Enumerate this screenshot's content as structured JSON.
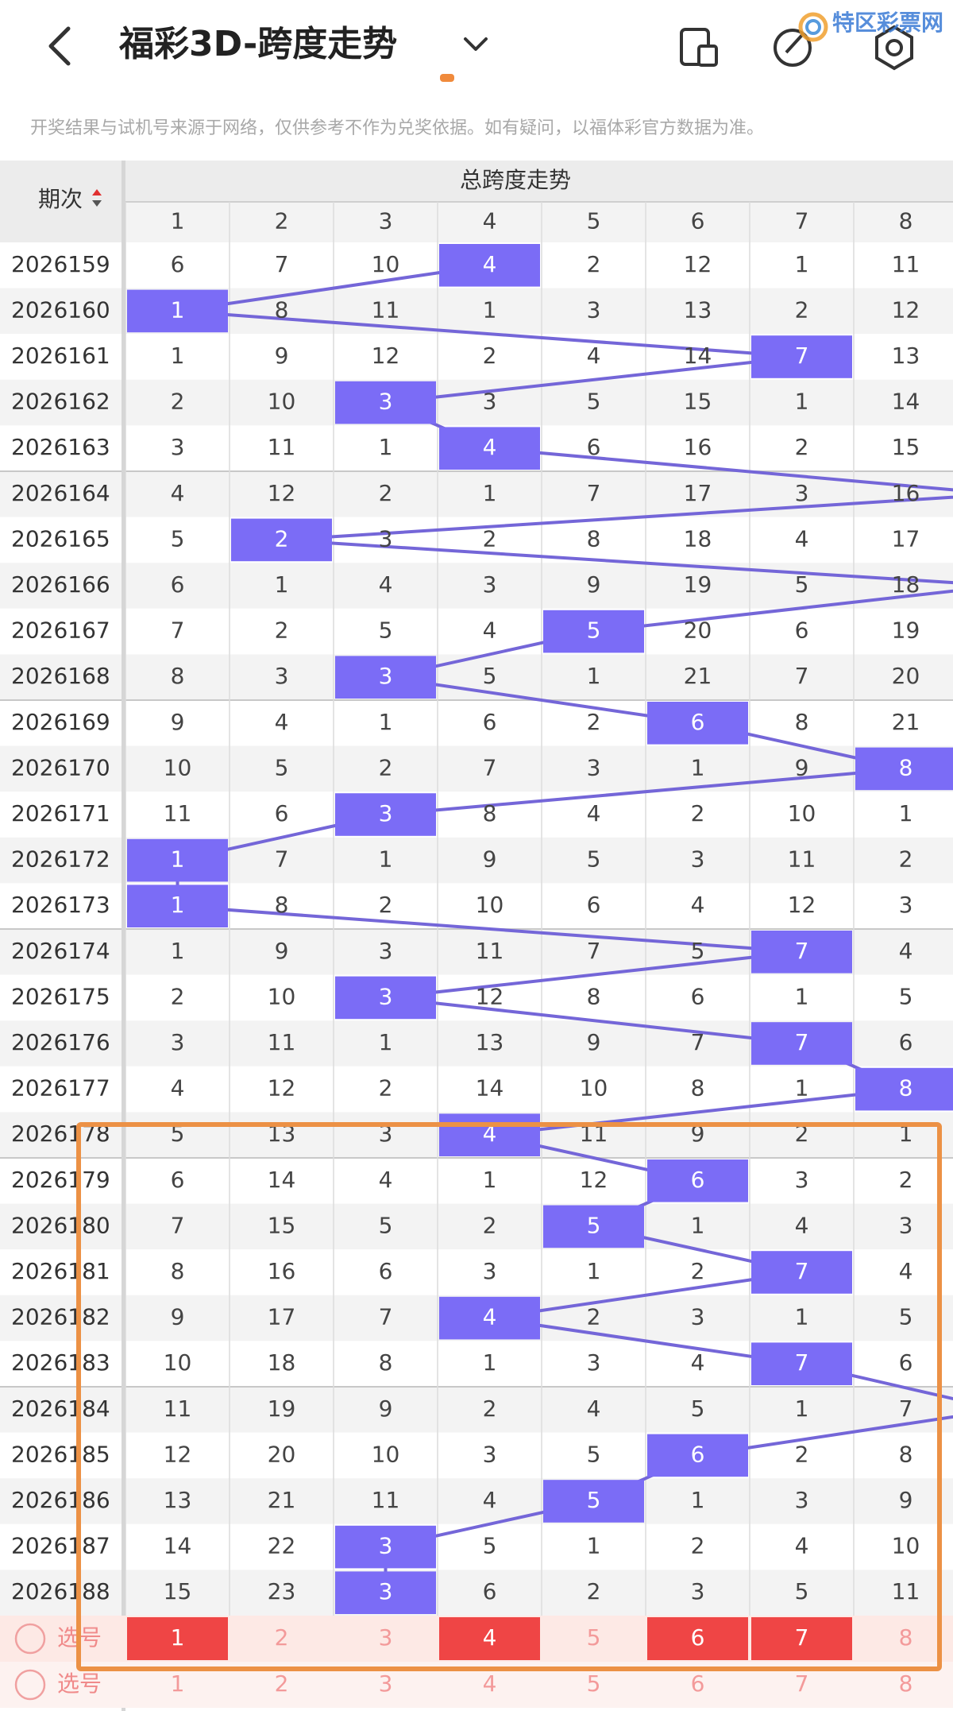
{
  "header": {
    "title": "福彩3D-跨度走势",
    "watermark": "特区彩票网"
  },
  "notice": "开奖结果与试机号来源于网络，仅供参考不作为兑奖依据。如有疑问，以福体彩官方数据为准。",
  "table": {
    "period_header": "期次",
    "group_header": "总跨度走势",
    "columns": [
      1,
      2,
      3,
      4,
      5,
      6,
      7,
      8
    ],
    "rows": [
      {
        "period": "2026159",
        "values": [
          6,
          7,
          10,
          4,
          2,
          12,
          1,
          11
        ],
        "hit": 3
      },
      {
        "period": "2026160",
        "values": [
          1,
          8,
          11,
          1,
          3,
          13,
          2,
          12
        ],
        "hit": 0
      },
      {
        "period": "2026161",
        "values": [
          1,
          9,
          12,
          2,
          4,
          14,
          7,
          13
        ],
        "hit": 6
      },
      {
        "period": "2026162",
        "values": [
          2,
          10,
          3,
          3,
          5,
          15,
          1,
          14
        ],
        "hit": 2
      },
      {
        "period": "2026163",
        "values": [
          3,
          11,
          1,
          4,
          6,
          16,
          2,
          15
        ],
        "hit": 3
      },
      {
        "period": "2026164",
        "values": [
          4,
          12,
          2,
          1,
          7,
          17,
          3,
          16
        ],
        "hit": null
      },
      {
        "period": "2026165",
        "values": [
          5,
          2,
          3,
          2,
          8,
          18,
          4,
          17
        ],
        "hit": 1
      },
      {
        "period": "2026166",
        "values": [
          6,
          1,
          4,
          3,
          9,
          19,
          5,
          18
        ],
        "hit": null
      },
      {
        "period": "2026167",
        "values": [
          7,
          2,
          5,
          4,
          5,
          20,
          6,
          19
        ],
        "hit": 4
      },
      {
        "period": "2026168",
        "values": [
          8,
          3,
          3,
          5,
          1,
          21,
          7,
          20
        ],
        "hit": 2
      },
      {
        "period": "2026169",
        "values": [
          9,
          4,
          1,
          6,
          2,
          6,
          8,
          21
        ],
        "hit": 5
      },
      {
        "period": "2026170",
        "values": [
          10,
          5,
          2,
          7,
          3,
          1,
          9,
          8
        ],
        "hit": 7
      },
      {
        "period": "2026171",
        "values": [
          11,
          6,
          3,
          8,
          4,
          2,
          10,
          1
        ],
        "hit": 2
      },
      {
        "period": "2026172",
        "values": [
          1,
          7,
          1,
          9,
          5,
          3,
          11,
          2
        ],
        "hit": 0
      },
      {
        "period": "2026173",
        "values": [
          1,
          8,
          2,
          10,
          6,
          4,
          12,
          3
        ],
        "hit": 0
      },
      {
        "period": "2026174",
        "values": [
          1,
          9,
          3,
          11,
          7,
          5,
          7,
          4
        ],
        "hit": 6
      },
      {
        "period": "2026175",
        "values": [
          2,
          10,
          3,
          12,
          8,
          6,
          1,
          5
        ],
        "hit": 2
      },
      {
        "period": "2026176",
        "values": [
          3,
          11,
          1,
          13,
          9,
          7,
          7,
          6
        ],
        "hit": 6
      },
      {
        "period": "2026177",
        "values": [
          4,
          12,
          2,
          14,
          10,
          8,
          1,
          8
        ],
        "hit": 7
      },
      {
        "period": "2026178",
        "values": [
          5,
          13,
          3,
          4,
          11,
          9,
          2,
          1
        ],
        "hit": 3
      },
      {
        "period": "2026179",
        "values": [
          6,
          14,
          4,
          1,
          12,
          6,
          3,
          2
        ],
        "hit": 5
      },
      {
        "period": "2026180",
        "values": [
          7,
          15,
          5,
          2,
          5,
          1,
          4,
          3
        ],
        "hit": 4
      },
      {
        "period": "2026181",
        "values": [
          8,
          16,
          6,
          3,
          1,
          2,
          7,
          4
        ],
        "hit": 6
      },
      {
        "period": "2026182",
        "values": [
          9,
          17,
          7,
          4,
          2,
          3,
          1,
          5
        ],
        "hit": 3
      },
      {
        "period": "2026183",
        "values": [
          10,
          18,
          8,
          1,
          3,
          4,
          7,
          6
        ],
        "hit": 6
      },
      {
        "period": "2026184",
        "values": [
          11,
          19,
          9,
          2,
          4,
          5,
          1,
          7
        ],
        "hit": null
      },
      {
        "period": "2026185",
        "values": [
          12,
          20,
          10,
          3,
          5,
          6,
          2,
          8
        ],
        "hit": 5
      },
      {
        "period": "2026186",
        "values": [
          13,
          21,
          11,
          4,
          5,
          1,
          3,
          9
        ],
        "hit": 4
      },
      {
        "period": "2026187",
        "values": [
          14,
          22,
          3,
          5,
          1,
          2,
          4,
          10
        ],
        "hit": 2
      },
      {
        "period": "2026188",
        "values": [
          15,
          23,
          3,
          6,
          2,
          3,
          5,
          11
        ],
        "hit": 2
      }
    ]
  },
  "selector": {
    "rows": [
      {
        "label": "选号",
        "numbers": [
          1,
          2,
          3,
          4,
          5,
          6,
          7,
          8
        ],
        "selected": [
          true,
          false,
          false,
          true,
          false,
          true,
          true,
          false
        ]
      },
      {
        "label": "选号",
        "numbers": [
          1,
          2,
          3,
          4,
          5,
          6,
          7,
          8
        ],
        "selected": [
          false,
          false,
          false,
          false,
          false,
          false,
          false,
          false
        ]
      }
    ]
  }
}
